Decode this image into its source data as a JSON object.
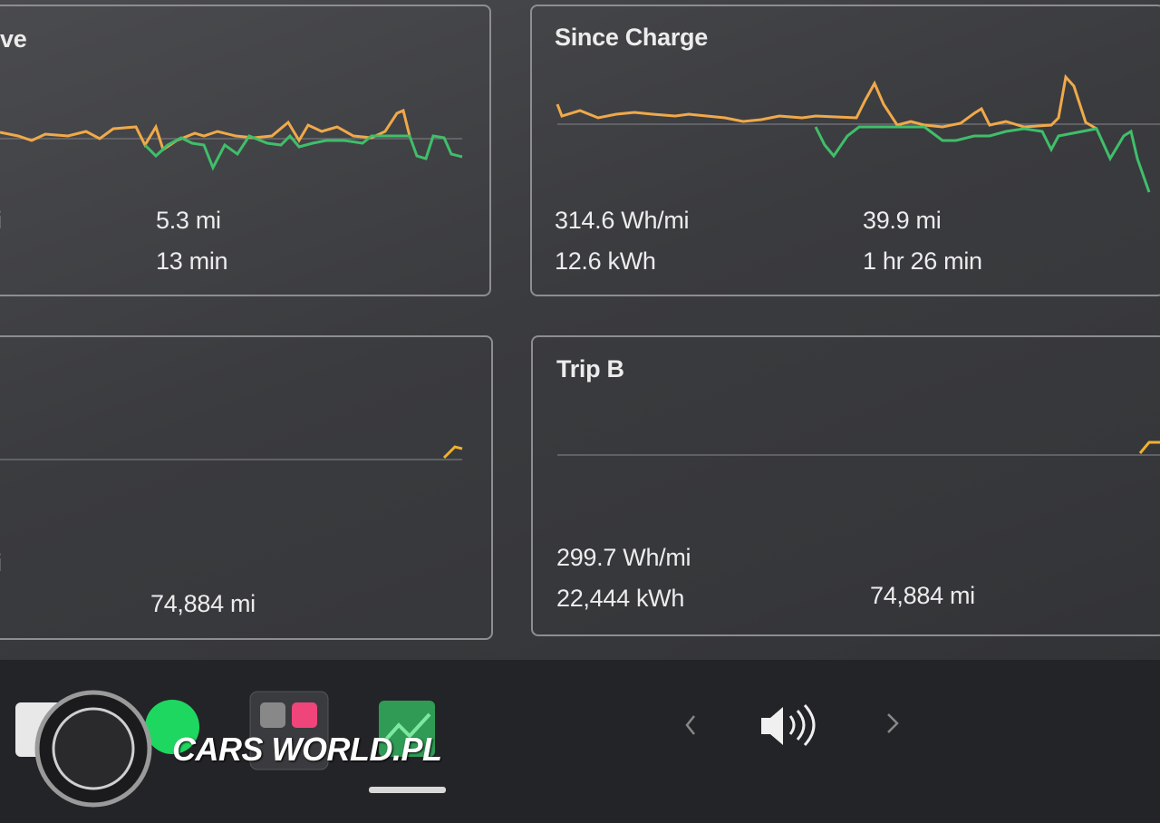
{
  "panels": [
    {
      "title": "ve",
      "left": [
        "i"
      ],
      "right": [
        "5.3 mi",
        "13 min"
      ]
    },
    {
      "title": "Since Charge",
      "left": [
        "314.6 Wh/mi",
        "12.6 kWh"
      ],
      "right": [
        "39.9 mi",
        "1 hr 26 min"
      ]
    },
    {
      "left": [
        "i"
      ],
      "right": [
        "74,884 mi"
      ]
    },
    {
      "title": "Trip B",
      "left": [
        "299.7 Wh/mi",
        "22,444 kWh"
      ],
      "right": [
        "74,884 mi"
      ]
    }
  ],
  "watermark": "CARS WORLD.PL"
}
